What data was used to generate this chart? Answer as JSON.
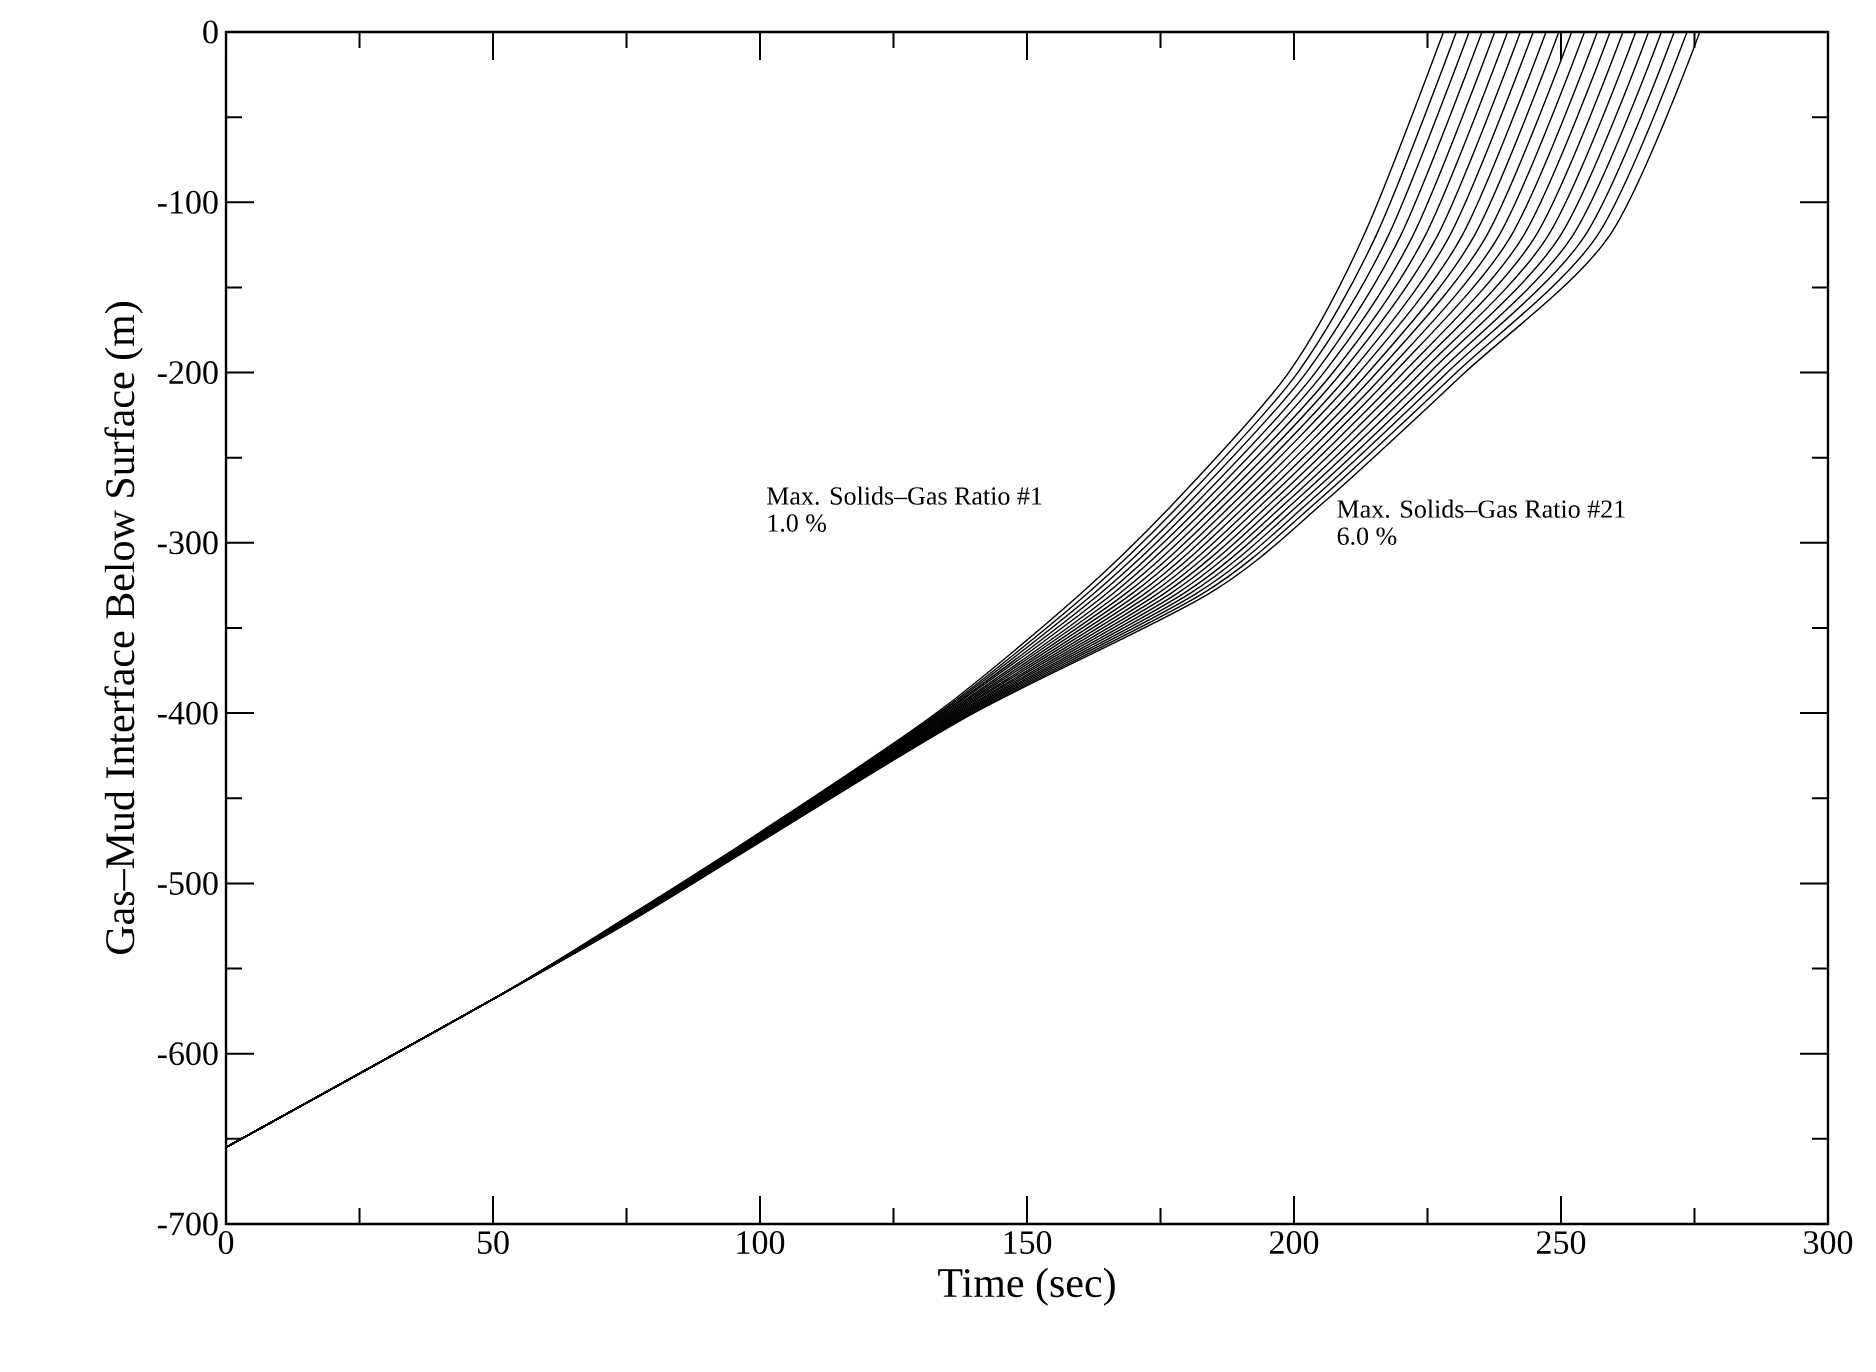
{
  "chart_data": {
    "type": "line",
    "xlabel": "Time (sec)",
    "ylabel": "Gas–Mud Interface Below Surface (m)",
    "xlim": [
      0,
      300
    ],
    "ylim": [
      -700,
      0
    ],
    "xticks": [
      0,
      50,
      100,
      150,
      200,
      250,
      300
    ],
    "yticks": [
      -700,
      -600,
      -500,
      -400,
      -300,
      -200,
      -100,
      0
    ],
    "grid": false,
    "annotations": [
      "Max. Solids–Gas Ratio #1",
      "1.0 %",
      "Max. Solids–Gas Ratio #21",
      "6.0 %"
    ],
    "series": [
      {
        "color": "#000000",
        "x": [
          0,
          50,
          75,
          100,
          133,
          160,
          178,
          199,
          213,
          228
        ],
        "values": [
          -655,
          -568,
          -520,
          -470,
          -400,
          -330,
          -275,
          -200,
          -120,
          0
        ]
      },
      {
        "color": "#000000",
        "x": [
          0,
          50,
          75.1,
          100.2,
          133.4,
          161.2,
          179.4,
          200.7,
          215.3,
          230.4
        ],
        "values": [
          -655,
          -568,
          -520,
          -470,
          -400,
          -330,
          -275,
          -200,
          -120,
          0
        ]
      },
      {
        "color": "#000000",
        "x": [
          0,
          50,
          75.2,
          100.3,
          133.7,
          162.4,
          180.8,
          202.3,
          217.6,
          232.8
        ],
        "values": [
          -655,
          -568,
          -520,
          -470,
          -400,
          -330,
          -275,
          -200,
          -120,
          0
        ]
      },
      {
        "color": "#000000",
        "x": [
          0,
          50,
          75.3,
          100.5,
          134.1,
          163.6,
          182.2,
          204,
          219.9,
          235.2
        ],
        "values": [
          -655,
          -568,
          -520,
          -470,
          -400,
          -330,
          -275,
          -200,
          -120,
          0
        ]
      },
      {
        "color": "#000000",
        "x": [
          0,
          50,
          75.4,
          100.6,
          134.4,
          164.8,
          183.6,
          205.6,
          222.2,
          237.6
        ],
        "values": [
          -655,
          -568,
          -520,
          -470,
          -400,
          -330,
          -275,
          -200,
          -120,
          0
        ]
      },
      {
        "color": "#000000",
        "x": [
          0,
          50,
          75.5,
          100.8,
          134.8,
          166,
          185,
          207.3,
          224.5,
          240
        ],
        "values": [
          -655,
          -568,
          -520,
          -470,
          -400,
          -330,
          -275,
          -200,
          -120,
          0
        ]
      },
      {
        "color": "#000000",
        "x": [
          0,
          50,
          75.6,
          100.9,
          135.1,
          167.2,
          186.4,
          208.9,
          226.8,
          242.4
        ],
        "values": [
          -655,
          -568,
          -520,
          -470,
          -400,
          -330,
          -275,
          -200,
          -120,
          0
        ]
      },
      {
        "color": "#000000",
        "x": [
          0,
          50,
          75.7,
          101.1,
          135.5,
          168.4,
          187.8,
          210.6,
          229.1,
          244.8
        ],
        "values": [
          -655,
          -568,
          -520,
          -470,
          -400,
          -330,
          -275,
          -200,
          -120,
          0
        ]
      },
      {
        "color": "#000000",
        "x": [
          0,
          50,
          75.8,
          101.2,
          135.8,
          169.6,
          189.2,
          212.2,
          231.4,
          247.2
        ],
        "values": [
          -655,
          -568,
          -520,
          -470,
          -400,
          -330,
          -275,
          -200,
          -120,
          0
        ]
      },
      {
        "color": "#000000",
        "x": [
          0,
          50,
          75.9,
          101.4,
          136.2,
          170.8,
          190.6,
          213.9,
          233.7,
          249.6
        ],
        "values": [
          -655,
          -568,
          -520,
          -470,
          -400,
          -330,
          -275,
          -200,
          -120,
          0
        ]
      },
      {
        "color": "#000000",
        "x": [
          0,
          50,
          76,
          101.5,
          136.5,
          172,
          192,
          215.5,
          236,
          252
        ],
        "values": [
          -655,
          -568,
          -520,
          -470,
          -400,
          -330,
          -275,
          -200,
          -120,
          0
        ]
      },
      {
        "color": "#000000",
        "x": [
          0,
          50,
          76.1,
          101.7,
          136.9,
          173.2,
          193.4,
          217.2,
          238.3,
          254.4
        ],
        "values": [
          -655,
          -568,
          -520,
          -470,
          -400,
          -330,
          -275,
          -200,
          -120,
          0
        ]
      },
      {
        "color": "#000000",
        "x": [
          0,
          50,
          76.2,
          101.8,
          137.2,
          174.4,
          194.8,
          218.8,
          240.6,
          256.8
        ],
        "values": [
          -655,
          -568,
          -520,
          -470,
          -400,
          -330,
          -275,
          -200,
          -120,
          0
        ]
      },
      {
        "color": "#000000",
        "x": [
          0,
          50,
          76.3,
          102,
          137.6,
          175.6,
          196.2,
          220.5,
          242.9,
          259.2
        ],
        "values": [
          -655,
          -568,
          -520,
          -470,
          -400,
          -330,
          -275,
          -200,
          -120,
          0
        ]
      },
      {
        "color": "#000000",
        "x": [
          0,
          50,
          76.4,
          102.1,
          137.9,
          176.8,
          197.6,
          222.1,
          245.2,
          261.6
        ],
        "values": [
          -655,
          -568,
          -520,
          -470,
          -400,
          -330,
          -275,
          -200,
          -120,
          0
        ]
      },
      {
        "color": "#000000",
        "x": [
          0,
          50,
          76.5,
          102.3,
          138.3,
          178,
          199,
          223.8,
          247.5,
          264
        ],
        "values": [
          -655,
          -568,
          -520,
          -470,
          -400,
          -330,
          -275,
          -200,
          -120,
          0
        ]
      },
      {
        "color": "#000000",
        "x": [
          0,
          50,
          76.6,
          102.4,
          138.6,
          179.2,
          200.4,
          225.4,
          249.8,
          266.4
        ],
        "values": [
          -655,
          -568,
          -520,
          -470,
          -400,
          -330,
          -275,
          -200,
          -120,
          0
        ]
      },
      {
        "color": "#000000",
        "x": [
          0,
          50,
          76.7,
          102.6,
          139,
          180.4,
          201.8,
          227.1,
          252.1,
          268.8
        ],
        "values": [
          -655,
          -568,
          -520,
          -470,
          -400,
          -330,
          -275,
          -200,
          -120,
          0
        ]
      },
      {
        "color": "#000000",
        "x": [
          0,
          50,
          76.8,
          102.7,
          139.3,
          181.6,
          203.2,
          228.7,
          254.4,
          271.2
        ],
        "values": [
          -655,
          -568,
          -520,
          -470,
          -400,
          -330,
          -275,
          -200,
          -120,
          0
        ]
      },
      {
        "color": "#000000",
        "x": [
          0,
          50,
          76.9,
          102.9,
          139.7,
          182.8,
          204.6,
          230.4,
          256.7,
          273.6
        ],
        "values": [
          -655,
          -568,
          -520,
          -470,
          -400,
          -330,
          -275,
          -200,
          -120,
          0
        ]
      },
      {
        "color": "#000000",
        "x": [
          0,
          50,
          77,
          103,
          140,
          184,
          206,
          232,
          259,
          276
        ],
        "values": [
          -655,
          -568,
          -520,
          -470,
          -400,
          -330,
          -275,
          -200,
          -120,
          0
        ]
      }
    ]
  }
}
